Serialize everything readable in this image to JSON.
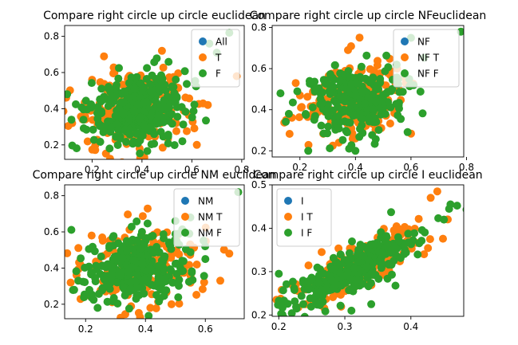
{
  "colors": {
    "All": "#1f77b4",
    "T": "#ff7f0e",
    "F": "#2ca02c"
  },
  "chart_data": [
    {
      "type": "scatter",
      "title": "Compare right circle up circle euclidean",
      "xlabel": "",
      "ylabel": "",
      "xlim": [
        0.09,
        0.81
      ],
      "ylim": [
        0.12,
        0.86
      ],
      "xticks": [
        0.2,
        0.4,
        0.6,
        0.8
      ],
      "xtick_labels": [
        "0.2",
        "0.4",
        "0.6",
        "0.8"
      ],
      "yticks": [
        0.2,
        0.4,
        0.6,
        0.8
      ],
      "ytick_labels": [
        "0.2",
        "0.4",
        "0.6",
        "0.8"
      ],
      "legend": {
        "placement": "top-right",
        "entries": [
          "All",
          "T",
          "F"
        ]
      },
      "series": [
        {
          "name": "All",
          "cluster": {
            "cx": 0.38,
            "cy": 0.4,
            "sx": 0.09,
            "sy": 0.1,
            "corr": 0.1,
            "n": 0
          }
        },
        {
          "name": "T",
          "cluster": {
            "cx": 0.38,
            "cy": 0.4,
            "sx": 0.1,
            "sy": 0.1,
            "corr": 0.1,
            "n": 260
          },
          "points": [
            [
              0.12,
              0.32
            ],
            [
              0.78,
              0.58
            ],
            [
              0.48,
              0.72
            ],
            [
              0.62,
              0.2
            ],
            [
              0.2,
              0.56
            ]
          ]
        },
        {
          "name": "F",
          "cluster": {
            "cx": 0.38,
            "cy": 0.4,
            "sx": 0.1,
            "sy": 0.1,
            "corr": 0.1,
            "n": 340
          },
          "points": [
            [
              0.1,
              0.48
            ],
            [
              0.75,
              0.82
            ],
            [
              0.7,
              0.71
            ],
            [
              0.67,
              0.76
            ],
            [
              0.27,
              0.18
            ]
          ]
        }
      ]
    },
    {
      "type": "scatter",
      "title": "Compare right circle up circle NFeuclidean",
      "xlabel": "",
      "ylabel": "",
      "xlim": [
        0.1,
        0.79
      ],
      "ylim": [
        0.17,
        0.81
      ],
      "xticks": [
        0.2,
        0.4,
        0.6,
        0.8
      ],
      "xtick_labels": [
        "0.2",
        "0.4",
        "0.6",
        "0.8"
      ],
      "yticks": [
        0.2,
        0.4,
        0.6,
        0.8
      ],
      "ytick_labels": [
        "0.2",
        "0.4",
        "0.6",
        "0.8"
      ],
      "legend": {
        "placement": "top-right",
        "entries": [
          "NF",
          "NF T",
          "NF F"
        ]
      },
      "series": [
        {
          "name": "NF",
          "cluster": {
            "cx": 0.4,
            "cy": 0.45,
            "sx": 0.09,
            "sy": 0.09,
            "corr": 0.1,
            "n": 0
          }
        },
        {
          "name": "NF T",
          "cluster": {
            "cx": 0.4,
            "cy": 0.45,
            "sx": 0.09,
            "sy": 0.09,
            "corr": 0.1,
            "n": 200
          },
          "points": [
            [
              0.15,
              0.35
            ],
            [
              0.2,
              0.47
            ],
            [
              0.55,
              0.6
            ],
            [
              0.34,
              0.24
            ]
          ]
        },
        {
          "name": "NF F",
          "cluster": {
            "cx": 0.4,
            "cy": 0.44,
            "sx": 0.09,
            "sy": 0.09,
            "corr": 0.1,
            "n": 260
          },
          "points": [
            [
              0.13,
              0.48
            ],
            [
              0.78,
              0.78
            ],
            [
              0.16,
              0.38
            ],
            [
              0.23,
              0.2
            ],
            [
              0.4,
              0.2
            ],
            [
              0.6,
              0.75
            ]
          ]
        }
      ]
    },
    {
      "type": "scatter",
      "title": "Compare right circle up circle NM euclidean",
      "xlabel": "",
      "ylabel": "",
      "xlim": [
        0.13,
        0.73
      ],
      "ylim": [
        0.12,
        0.86
      ],
      "xticks": [
        0.2,
        0.4,
        0.6
      ],
      "xtick_labels": [
        "0.2",
        "0.4",
        "0.6"
      ],
      "yticks": [
        0.2,
        0.4,
        0.6,
        0.8
      ],
      "ytick_labels": [
        "0.2",
        "0.4",
        "0.6",
        "0.8"
      ],
      "legend": {
        "placement": "top-right",
        "entries": [
          "NM",
          "NM T",
          "NM F"
        ]
      },
      "series": [
        {
          "name": "NM",
          "cluster": {
            "cx": 0.38,
            "cy": 0.4,
            "sx": 0.08,
            "sy": 0.1,
            "corr": 0.1,
            "n": 0
          }
        },
        {
          "name": "NM T",
          "cluster": {
            "cx": 0.38,
            "cy": 0.4,
            "sx": 0.09,
            "sy": 0.1,
            "corr": 0.1,
            "n": 230
          },
          "points": [
            [
              0.15,
              0.32
            ],
            [
              0.68,
              0.48
            ],
            [
              0.65,
              0.33
            ],
            [
              0.22,
              0.58
            ]
          ]
        },
        {
          "name": "NM F",
          "cluster": {
            "cx": 0.37,
            "cy": 0.4,
            "sx": 0.09,
            "sy": 0.1,
            "corr": 0.1,
            "n": 300
          },
          "points": [
            [
              0.71,
              0.82
            ],
            [
              0.5,
              0.66
            ],
            [
              0.55,
              0.68
            ],
            [
              0.24,
              0.18
            ],
            [
              0.6,
              0.45
            ]
          ]
        }
      ]
    },
    {
      "type": "scatter",
      "title": "Compare right circle up circle I euclidean",
      "xlabel": "",
      "ylabel": "",
      "xlim": [
        0.19,
        0.48
      ],
      "ylim": [
        0.197,
        0.5
      ],
      "xticks": [
        0.2,
        0.3,
        0.4
      ],
      "xtick_labels": [
        "0.2",
        "0.3",
        "0.4"
      ],
      "yticks": [
        0.2,
        0.3,
        0.4,
        0.5
      ],
      "ytick_labels": [
        "0.2",
        "0.3",
        "0.4",
        "0.5"
      ],
      "legend": {
        "placement": "top-left",
        "entries": [
          "I",
          "I T",
          "I F"
        ]
      },
      "series": [
        {
          "name": "I",
          "cluster": {
            "cx": 0.31,
            "cy": 0.3,
            "sx": 0.05,
            "sy": 0.045,
            "corr": 0.8,
            "n": 0
          }
        },
        {
          "name": "I T",
          "cluster": {
            "cx": 0.32,
            "cy": 0.31,
            "sx": 0.05,
            "sy": 0.045,
            "corr": 0.8,
            "n": 220
          },
          "points": [
            [
              0.44,
              0.485
            ],
            [
              0.43,
              0.47
            ],
            [
              0.22,
              0.27
            ],
            [
              0.42,
              0.34
            ]
          ]
        },
        {
          "name": "I F",
          "cluster": {
            "cx": 0.31,
            "cy": 0.3,
            "sx": 0.05,
            "sy": 0.045,
            "corr": 0.8,
            "n": 280
          },
          "points": [
            [
              0.2,
              0.233
            ],
            [
              0.2,
              0.295
            ],
            [
              0.46,
              0.455
            ],
            [
              0.47,
              0.452
            ],
            [
              0.37,
              0.437
            ],
            [
              0.31,
              0.21
            ],
            [
              0.34,
              0.225
            ],
            [
              0.45,
              0.42
            ]
          ]
        }
      ]
    }
  ]
}
